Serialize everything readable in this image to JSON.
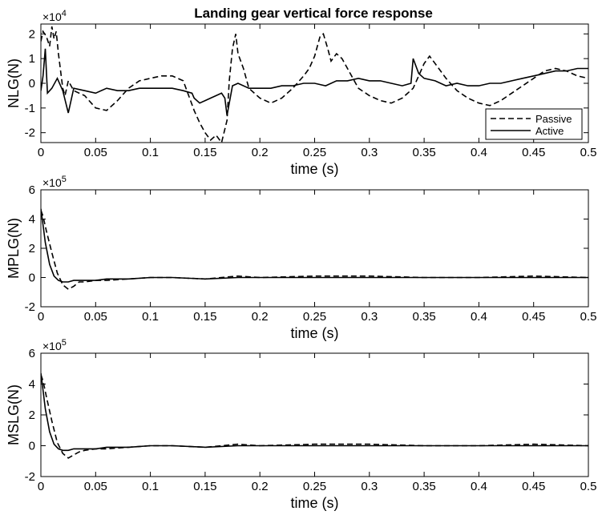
{
  "title": "Landing gear vertical force response",
  "legend": {
    "placement": "bottom-right-of-first-panel",
    "entries": [
      "Passive",
      "Active"
    ]
  },
  "colors": {
    "line": "#000000",
    "background": "#ffffff",
    "axes": "#000000"
  },
  "chart_data": [
    {
      "type": "line",
      "title": "Landing gear vertical force response",
      "xlabel": "time (s)",
      "ylabel": "NLG(N)",
      "exponent_label": "×10",
      "exponent_power": "4",
      "xlim": [
        0,
        0.5
      ],
      "ylim": [
        -2.4,
        2.4
      ],
      "xticks": [
        0,
        0.05,
        0.1,
        0.15,
        0.2,
        0.25,
        0.3,
        0.35,
        0.4,
        0.45,
        0.5
      ],
      "xtick_labels": [
        "0",
        "0.05",
        "0.1",
        "0.15",
        "0.2",
        "0.25",
        "0.3",
        "0.35",
        "0.4",
        "0.45",
        "0.5"
      ],
      "yticks": [
        -2,
        -1,
        0,
        1,
        2
      ],
      "ytick_labels": [
        "-2",
        "-1",
        "0",
        "1",
        "2"
      ],
      "grid": false,
      "legend": "bottom-right",
      "series": [
        {
          "name": "Passive",
          "style": "dashed",
          "x": [
            0,
            0.002,
            0.005,
            0.008,
            0.01,
            0.012,
            0.014,
            0.016,
            0.018,
            0.02,
            0.022,
            0.025,
            0.03,
            0.04,
            0.05,
            0.06,
            0.07,
            0.08,
            0.09,
            0.1,
            0.11,
            0.12,
            0.13,
            0.135,
            0.14,
            0.145,
            0.15,
            0.155,
            0.16,
            0.165,
            0.17,
            0.172,
            0.175,
            0.178,
            0.18,
            0.185,
            0.19,
            0.2,
            0.21,
            0.22,
            0.23,
            0.24,
            0.245,
            0.25,
            0.255,
            0.258,
            0.262,
            0.265,
            0.27,
            0.275,
            0.28,
            0.29,
            0.3,
            0.31,
            0.32,
            0.33,
            0.34,
            0.345,
            0.35,
            0.355,
            0.36,
            0.37,
            0.38,
            0.39,
            0.4,
            0.41,
            0.42,
            0.43,
            0.44,
            0.45,
            0.46,
            0.47,
            0.48,
            0.49,
            0.5
          ],
          "values": [
            1.7,
            2.1,
            1.9,
            1.5,
            2.3,
            1.8,
            2.1,
            1.2,
            0.5,
            -0.2,
            -0.5,
            0.1,
            -0.3,
            -0.5,
            -1.0,
            -1.1,
            -0.7,
            -0.2,
            0.1,
            0.2,
            0.3,
            0.3,
            0.1,
            -0.5,
            -1.1,
            -1.6,
            -2.0,
            -2.3,
            -2.1,
            -2.4,
            -1.5,
            0.1,
            1.4,
            2.0,
            1.2,
            0.6,
            -0.2,
            -0.6,
            -0.8,
            -0.6,
            -0.2,
            0.3,
            0.6,
            1.1,
            1.9,
            2.0,
            1.4,
            0.9,
            1.2,
            1.0,
            0.6,
            -0.2,
            -0.5,
            -0.7,
            -0.8,
            -0.6,
            -0.2,
            0.3,
            0.8,
            1.1,
            0.8,
            0.2,
            -0.3,
            -0.6,
            -0.8,
            -0.9,
            -0.7,
            -0.4,
            -0.1,
            0.2,
            0.5,
            0.6,
            0.5,
            0.3,
            0.2
          ]
        },
        {
          "name": "Active",
          "style": "solid",
          "x": [
            0,
            0.002,
            0.004,
            0.006,
            0.01,
            0.015,
            0.02,
            0.025,
            0.03,
            0.04,
            0.05,
            0.06,
            0.07,
            0.08,
            0.09,
            0.1,
            0.11,
            0.12,
            0.13,
            0.138,
            0.14,
            0.145,
            0.15,
            0.155,
            0.16,
            0.165,
            0.168,
            0.17,
            0.175,
            0.18,
            0.19,
            0.2,
            0.21,
            0.22,
            0.23,
            0.24,
            0.25,
            0.26,
            0.27,
            0.28,
            0.29,
            0.3,
            0.31,
            0.32,
            0.33,
            0.338,
            0.34,
            0.345,
            0.35,
            0.36,
            0.37,
            0.38,
            0.39,
            0.4,
            0.41,
            0.42,
            0.43,
            0.44,
            0.45,
            0.46,
            0.47,
            0.48,
            0.49,
            0.5
          ],
          "values": [
            -0.3,
            0.3,
            1.4,
            -0.4,
            -0.2,
            0.2,
            -0.3,
            -1.2,
            -0.2,
            -0.3,
            -0.4,
            -0.2,
            -0.3,
            -0.3,
            -0.2,
            -0.2,
            -0.2,
            -0.2,
            -0.3,
            -0.4,
            -0.6,
            -0.8,
            -0.7,
            -0.6,
            -0.5,
            -0.4,
            -0.6,
            -1.3,
            -0.1,
            0.0,
            -0.2,
            -0.2,
            -0.2,
            -0.1,
            -0.1,
            0.0,
            0.0,
            -0.1,
            0.1,
            0.1,
            0.2,
            0.1,
            0.1,
            0.0,
            -0.1,
            0.0,
            1.0,
            0.4,
            0.2,
            0.1,
            -0.1,
            0.0,
            -0.1,
            -0.1,
            0.0,
            0.0,
            0.1,
            0.2,
            0.3,
            0.4,
            0.5,
            0.5,
            0.6,
            0.6
          ]
        }
      ]
    },
    {
      "type": "line",
      "title": "",
      "xlabel": "time (s)",
      "ylabel": "MPLG(N)",
      "exponent_label": "×10",
      "exponent_power": "5",
      "xlim": [
        0,
        0.5
      ],
      "ylim": [
        -2,
        6
      ],
      "xticks": [
        0,
        0.05,
        0.1,
        0.15,
        0.2,
        0.25,
        0.3,
        0.35,
        0.4,
        0.45,
        0.5
      ],
      "xtick_labels": [
        "0",
        "0.05",
        "0.1",
        "0.15",
        "0.2",
        "0.25",
        "0.3",
        "0.35",
        "0.4",
        "0.45",
        "0.5"
      ],
      "yticks": [
        -2,
        0,
        2,
        4,
        6
      ],
      "ytick_labels": [
        "-2",
        "0",
        "2",
        "4",
        "6"
      ],
      "grid": false,
      "series": [
        {
          "name": "Passive",
          "style": "dashed",
          "x": [
            0,
            0.002,
            0.005,
            0.01,
            0.015,
            0.02,
            0.025,
            0.03,
            0.035,
            0.04,
            0.05,
            0.06,
            0.08,
            0.1,
            0.12,
            0.15,
            0.18,
            0.2,
            0.25,
            0.3,
            0.35,
            0.4,
            0.45,
            0.5
          ],
          "values": [
            4.6,
            4.2,
            3.2,
            1.7,
            0.3,
            -0.5,
            -0.8,
            -0.6,
            -0.3,
            -0.3,
            -0.2,
            -0.2,
            -0.1,
            0.0,
            0.0,
            -0.1,
            0.1,
            0.0,
            0.1,
            0.1,
            0.0,
            0.0,
            0.1,
            0.0
          ]
        },
        {
          "name": "Active",
          "style": "solid",
          "x": [
            0,
            0.002,
            0.004,
            0.008,
            0.012,
            0.016,
            0.02,
            0.025,
            0.03,
            0.04,
            0.05,
            0.06,
            0.08,
            0.1,
            0.12,
            0.15,
            0.18,
            0.2,
            0.25,
            0.3,
            0.35,
            0.4,
            0.45,
            0.5
          ],
          "values": [
            4.7,
            3.6,
            2.4,
            0.9,
            0.1,
            -0.2,
            -0.3,
            -0.3,
            -0.2,
            -0.2,
            -0.2,
            -0.1,
            -0.1,
            0.0,
            0.0,
            -0.1,
            0.0,
            0.0,
            0.0,
            0.0,
            0.0,
            0.0,
            0.0,
            0.0
          ]
        }
      ]
    },
    {
      "type": "line",
      "title": "",
      "xlabel": "time (s)",
      "ylabel": "MSLG(N)",
      "exponent_label": "×10",
      "exponent_power": "5",
      "xlim": [
        0,
        0.5
      ],
      "ylim": [
        -2,
        6
      ],
      "xticks": [
        0,
        0.05,
        0.1,
        0.15,
        0.2,
        0.25,
        0.3,
        0.35,
        0.4,
        0.45,
        0.5
      ],
      "xtick_labels": [
        "0",
        "0.05",
        "0.1",
        "0.15",
        "0.2",
        "0.25",
        "0.3",
        "0.35",
        "0.4",
        "0.45",
        "0.5"
      ],
      "yticks": [
        -2,
        0,
        2,
        4,
        6
      ],
      "ytick_labels": [
        "-2",
        "0",
        "2",
        "4",
        "6"
      ],
      "grid": false,
      "series": [
        {
          "name": "Passive",
          "style": "dashed",
          "x": [
            0,
            0.002,
            0.005,
            0.01,
            0.015,
            0.02,
            0.025,
            0.03,
            0.035,
            0.04,
            0.05,
            0.06,
            0.08,
            0.1,
            0.12,
            0.15,
            0.18,
            0.2,
            0.25,
            0.3,
            0.35,
            0.4,
            0.45,
            0.5
          ],
          "values": [
            4.6,
            4.2,
            3.2,
            1.6,
            0.2,
            -0.5,
            -0.8,
            -0.6,
            -0.4,
            -0.3,
            -0.2,
            -0.2,
            -0.1,
            0.0,
            0.0,
            -0.1,
            0.1,
            0.0,
            0.1,
            0.1,
            0.0,
            0.0,
            0.1,
            0.0
          ]
        },
        {
          "name": "Active",
          "style": "solid",
          "x": [
            0,
            0.002,
            0.004,
            0.008,
            0.012,
            0.016,
            0.02,
            0.025,
            0.03,
            0.04,
            0.05,
            0.06,
            0.08,
            0.1,
            0.12,
            0.15,
            0.18,
            0.2,
            0.25,
            0.3,
            0.35,
            0.4,
            0.45,
            0.5
          ],
          "values": [
            4.7,
            3.6,
            2.4,
            0.9,
            0.1,
            -0.2,
            -0.3,
            -0.3,
            -0.2,
            -0.2,
            -0.2,
            -0.1,
            -0.1,
            0.0,
            0.0,
            -0.1,
            0.0,
            0.0,
            0.0,
            0.0,
            0.0,
            0.0,
            0.0,
            0.0
          ]
        }
      ]
    }
  ]
}
